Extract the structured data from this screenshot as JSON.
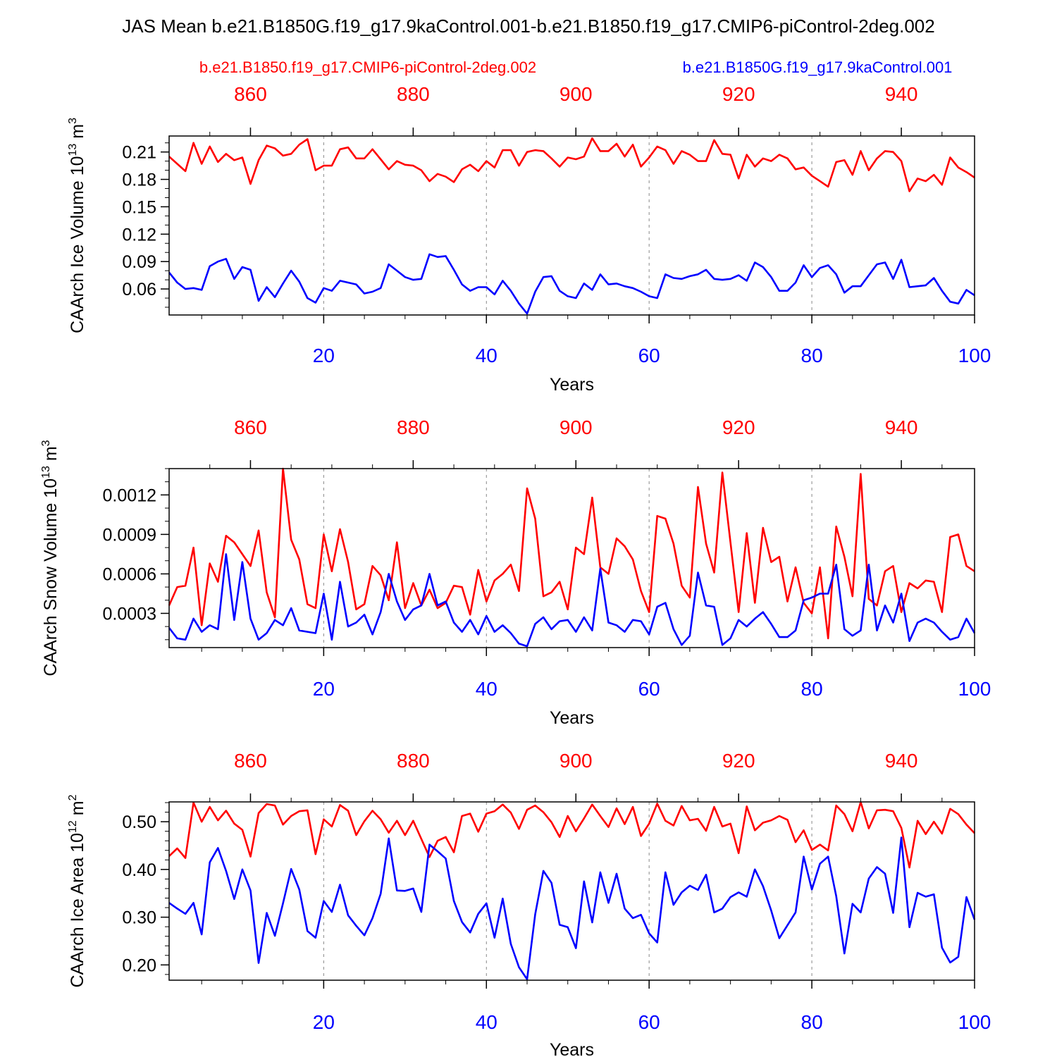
{
  "title": "JAS Mean b.e21.B1850G.f19_g17.9kaControl.001-b.e21.B1850.f19_g17.CMIP6-piControl-2deg.002",
  "legend": {
    "red_label": "b.e21.B1850.f19_g17.CMIP6-piControl-2deg.002",
    "blue_label": "b.e21.B1850G.f19_g17.9kaControl.001"
  },
  "colors": {
    "red": "#ff0000",
    "blue": "#0000ff",
    "axis": "#000000",
    "grid": "#888888"
  },
  "chart_data": [
    {
      "type": "line",
      "ylabel_main": "CAArch Ice Volume 10",
      "ylabel_exp": "13",
      "ylabel_unit": " m",
      "ylabel_unit_exp": "3",
      "xlabel": "Years",
      "xlim": [
        1,
        100
      ],
      "top_xlim": [
        850,
        949
      ],
      "ylim": [
        0.0315,
        0.2275
      ],
      "yticks": [
        0.06,
        0.09,
        0.12,
        0.15,
        0.18,
        0.21
      ],
      "ytick_labels": [
        "0.06",
        "0.09",
        "0.12",
        "0.15",
        "0.18",
        "0.21"
      ],
      "yminor": 0.01,
      "xticks": [
        20,
        40,
        60,
        80,
        100
      ],
      "xtick_labels": [
        "20",
        "40",
        "60",
        "80",
        "100"
      ],
      "top_xticks": [
        860,
        880,
        900,
        920,
        940
      ],
      "top_xtick_labels": [
        "860",
        "880",
        "900",
        "920",
        "940"
      ],
      "series": [
        {
          "name": "b.e21.B1850.f19_g17.CMIP6-piControl-2deg.002",
          "color": "red",
          "values": [
            0.205,
            0.197,
            0.189,
            0.22,
            0.197,
            0.216,
            0.199,
            0.208,
            0.201,
            0.204,
            0.175,
            0.201,
            0.217,
            0.214,
            0.206,
            0.208,
            0.218,
            0.224,
            0.19,
            0.195,
            0.195,
            0.213,
            0.215,
            0.203,
            0.203,
            0.213,
            0.202,
            0.191,
            0.2,
            0.196,
            0.195,
            0.19,
            0.178,
            0.186,
            0.183,
            0.177,
            0.191,
            0.196,
            0.189,
            0.2,
            0.193,
            0.212,
            0.212,
            0.195,
            0.21,
            0.212,
            0.211,
            0.203,
            0.194,
            0.204,
            0.202,
            0.205,
            0.225,
            0.211,
            0.211,
            0.219,
            0.205,
            0.218,
            0.194,
            0.204,
            0.216,
            0.212,
            0.197,
            0.211,
            0.207,
            0.2,
            0.2,
            0.223,
            0.208,
            0.207,
            0.181,
            0.207,
            0.194,
            0.203,
            0.2,
            0.207,
            0.203,
            0.191,
            0.193,
            0.184,
            0.178,
            0.172,
            0.199,
            0.201,
            0.185,
            0.211,
            0.19,
            0.203,
            0.211,
            0.21,
            0.2,
            0.167,
            0.181,
            0.178,
            0.185,
            0.174,
            0.204,
            0.193,
            0.188,
            0.182
          ]
        },
        {
          "name": "b.e21.B1850G.f19_g17.9kaControl.001",
          "color": "blue",
          "values": [
            0.078,
            0.067,
            0.06,
            0.061,
            0.059,
            0.085,
            0.09,
            0.093,
            0.071,
            0.084,
            0.081,
            0.047,
            0.062,
            0.051,
            0.066,
            0.08,
            0.068,
            0.05,
            0.045,
            0.061,
            0.058,
            0.069,
            0.067,
            0.065,
            0.055,
            0.057,
            0.061,
            0.087,
            0.08,
            0.073,
            0.07,
            0.071,
            0.098,
            0.095,
            0.096,
            0.081,
            0.065,
            0.058,
            0.062,
            0.062,
            0.054,
            0.069,
            0.058,
            0.044,
            0.033,
            0.057,
            0.073,
            0.074,
            0.058,
            0.052,
            0.05,
            0.066,
            0.059,
            0.076,
            0.065,
            0.066,
            0.063,
            0.061,
            0.057,
            0.052,
            0.05,
            0.076,
            0.072,
            0.071,
            0.074,
            0.076,
            0.081,
            0.071,
            0.07,
            0.071,
            0.075,
            0.069,
            0.089,
            0.084,
            0.073,
            0.058,
            0.058,
            0.067,
            0.086,
            0.073,
            0.083,
            0.086,
            0.076,
            0.056,
            0.063,
            0.063,
            0.075,
            0.087,
            0.089,
            0.071,
            0.092,
            0.062,
            0.063,
            0.064,
            0.072,
            0.058,
            0.046,
            0.044,
            0.059,
            0.053
          ]
        }
      ]
    },
    {
      "type": "line",
      "ylabel_main": "CAArch Snow Volume 10",
      "ylabel_exp": "13",
      "ylabel_unit": " m",
      "ylabel_unit_exp": "3",
      "xlabel": "Years",
      "xlim": [
        1,
        100
      ],
      "top_xlim": [
        850,
        949
      ],
      "ylim": [
        4e-05,
        0.0014
      ],
      "yticks": [
        0.0003,
        0.0006,
        0.0009,
        0.0012
      ],
      "ytick_labels": [
        "0.0003",
        "0.0006",
        "0.0009",
        "0.0012"
      ],
      "yminor": 0.0001,
      "xticks": [
        20,
        40,
        60,
        80,
        100
      ],
      "xtick_labels": [
        "20",
        "40",
        "60",
        "80",
        "100"
      ],
      "top_xticks": [
        860,
        880,
        900,
        920,
        940
      ],
      "top_xtick_labels": [
        "860",
        "880",
        "900",
        "920",
        "940"
      ],
      "series": [
        {
          "name": "b.e21.B1850.f19_g17.CMIP6-piControl-2deg.002",
          "color": "red",
          "values": [
            0.00036,
            0.0005,
            0.00051,
            0.0008,
            0.00021,
            0.00068,
            0.00054,
            0.00089,
            0.00084,
            0.00075,
            0.00066,
            0.00093,
            0.00046,
            0.00027,
            0.0014,
            0.00086,
            0.00071,
            0.00037,
            0.00034,
            0.0009,
            0.00062,
            0.00094,
            0.00069,
            0.00033,
            0.00037,
            0.00066,
            0.00059,
            0.0004,
            0.00084,
            0.00034,
            0.00053,
            0.00036,
            0.00048,
            0.00034,
            0.00038,
            0.00051,
            0.0005,
            0.00029,
            0.00063,
            0.00039,
            0.00055,
            0.0006,
            0.00067,
            0.00047,
            0.00125,
            0.00102,
            0.00043,
            0.00046,
            0.00054,
            0.00033,
            0.0008,
            0.00075,
            0.00118,
            0.00065,
            0.0006,
            0.00087,
            0.00081,
            0.00071,
            0.00047,
            0.00031,
            0.00104,
            0.00102,
            0.00083,
            0.00051,
            0.00042,
            0.00126,
            0.00083,
            0.00061,
            0.00137,
            0.00084,
            0.00031,
            0.00091,
            0.00038,
            0.00095,
            0.00069,
            0.00073,
            0.00039,
            0.00065,
            0.00038,
            0.0003,
            0.00065,
            0.00011,
            0.00096,
            0.00073,
            0.00043,
            0.00136,
            0.00041,
            0.00036,
            0.00062,
            0.00066,
            0.00031,
            0.00053,
            0.00049,
            0.00055,
            0.00054,
            0.00031,
            0.00088,
            0.0009,
            0.00066,
            0.00062
          ]
        },
        {
          "name": "b.e21.B1850G.f19_g17.9kaControl.001",
          "color": "blue",
          "values": [
            0.00019,
            0.00011,
            0.0001,
            0.00026,
            0.00016,
            0.00021,
            0.00018,
            0.00075,
            0.00025,
            0.00069,
            0.00026,
            0.0001,
            0.00015,
            0.00025,
            0.00021,
            0.00034,
            0.00017,
            0.00016,
            0.00015,
            0.00045,
            0.0001,
            0.00054,
            0.0002,
            0.00023,
            0.00029,
            0.00014,
            0.00031,
            0.0006,
            0.00039,
            0.00025,
            0.00033,
            0.00036,
            0.0006,
            0.00036,
            0.00039,
            0.00023,
            0.00016,
            0.00025,
            0.00014,
            0.00028,
            0.00016,
            0.00021,
            0.00015,
            7e-05,
            5e-05,
            0.00022,
            0.00027,
            0.00018,
            0.00024,
            0.00025,
            0.00016,
            0.00027,
            0.00017,
            0.00064,
            0.00023,
            0.00021,
            0.00016,
            0.00025,
            0.00024,
            0.00014,
            0.00035,
            0.00038,
            0.00018,
            6e-05,
            0.00013,
            0.00061,
            0.00036,
            0.00035,
            6e-05,
            0.00011,
            0.00025,
            0.0002,
            0.00026,
            0.00031,
            0.00022,
            0.00012,
            0.00012,
            0.00017,
            0.0004,
            0.00042,
            0.00045,
            0.00045,
            0.00067,
            0.00018,
            0.00013,
            0.00017,
            0.00067,
            0.00017,
            0.00036,
            0.00023,
            0.00045,
            9e-05,
            0.00023,
            0.00026,
            0.00023,
            0.00016,
            0.0001,
            0.00012,
            0.00026,
            0.00015
          ]
        }
      ]
    },
    {
      "type": "line",
      "ylabel_main": "CAArch Ice Area 10",
      "ylabel_exp": "12",
      "ylabel_unit": " m",
      "ylabel_unit_exp": "2",
      "xlabel": "Years",
      "xlim": [
        1,
        100
      ],
      "top_xlim": [
        850,
        949
      ],
      "ylim": [
        0.168,
        0.5415
      ],
      "yticks": [
        0.2,
        0.3,
        0.4,
        0.5
      ],
      "ytick_labels": [
        "0.20",
        "0.30",
        "0.40",
        "0.50"
      ],
      "yminor": 0.02,
      "xticks": [
        20,
        40,
        60,
        80,
        100
      ],
      "xtick_labels": [
        "20",
        "40",
        "60",
        "80",
        "100"
      ],
      "top_xticks": [
        860,
        880,
        900,
        920,
        940
      ],
      "top_xtick_labels": [
        "860",
        "880",
        "900",
        "920",
        "940"
      ],
      "series": [
        {
          "name": "b.e21.B1850.f19_g17.CMIP6-piControl-2deg.002",
          "color": "red",
          "values": [
            0.428,
            0.444,
            0.424,
            0.54,
            0.5,
            0.531,
            0.503,
            0.523,
            0.496,
            0.483,
            0.427,
            0.518,
            0.537,
            0.534,
            0.494,
            0.512,
            0.522,
            0.524,
            0.432,
            0.505,
            0.49,
            0.535,
            0.523,
            0.472,
            0.501,
            0.523,
            0.505,
            0.477,
            0.502,
            0.472,
            0.502,
            0.464,
            0.426,
            0.46,
            0.468,
            0.436,
            0.512,
            0.517,
            0.479,
            0.517,
            0.522,
            0.536,
            0.519,
            0.485,
            0.525,
            0.534,
            0.52,
            0.499,
            0.468,
            0.512,
            0.48,
            0.507,
            0.536,
            0.512,
            0.489,
            0.528,
            0.495,
            0.531,
            0.47,
            0.496,
            0.538,
            0.502,
            0.492,
            0.533,
            0.503,
            0.506,
            0.481,
            0.531,
            0.49,
            0.496,
            0.434,
            0.532,
            0.482,
            0.498,
            0.503,
            0.512,
            0.504,
            0.457,
            0.482,
            0.441,
            0.452,
            0.44,
            0.534,
            0.516,
            0.48,
            0.541,
            0.486,
            0.524,
            0.525,
            0.522,
            0.487,
            0.404,
            0.502,
            0.474,
            0.5,
            0.475,
            0.527,
            0.516,
            0.494,
            0.476
          ]
        },
        {
          "name": "b.e21.B1850G.f19_g17.9kaControl.001",
          "color": "blue",
          "values": [
            0.33,
            0.318,
            0.307,
            0.33,
            0.264,
            0.415,
            0.445,
            0.397,
            0.338,
            0.4,
            0.356,
            0.204,
            0.309,
            0.261,
            0.329,
            0.401,
            0.358,
            0.271,
            0.257,
            0.334,
            0.311,
            0.368,
            0.304,
            0.282,
            0.262,
            0.298,
            0.349,
            0.465,
            0.356,
            0.355,
            0.36,
            0.311,
            0.452,
            0.438,
            0.423,
            0.334,
            0.29,
            0.268,
            0.307,
            0.329,
            0.257,
            0.339,
            0.244,
            0.195,
            0.17,
            0.306,
            0.397,
            0.372,
            0.284,
            0.279,
            0.235,
            0.375,
            0.289,
            0.394,
            0.33,
            0.391,
            0.318,
            0.298,
            0.305,
            0.266,
            0.247,
            0.394,
            0.326,
            0.352,
            0.366,
            0.357,
            0.389,
            0.31,
            0.318,
            0.342,
            0.352,
            0.343,
            0.4,
            0.365,
            0.314,
            0.256,
            0.283,
            0.31,
            0.427,
            0.358,
            0.412,
            0.427,
            0.344,
            0.224,
            0.328,
            0.31,
            0.381,
            0.405,
            0.391,
            0.309,
            0.467,
            0.279,
            0.351,
            0.343,
            0.348,
            0.236,
            0.205,
            0.217,
            0.342,
            0.295
          ]
        }
      ]
    }
  ]
}
